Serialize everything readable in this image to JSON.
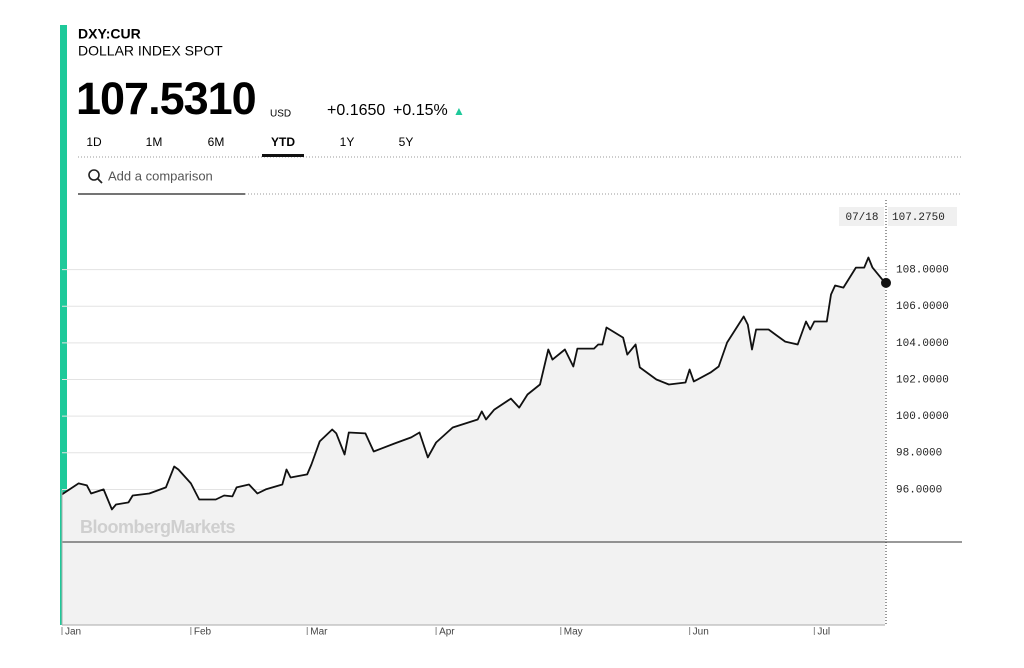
{
  "header": {
    "ticker": "DXY:CUR",
    "name": "DOLLAR INDEX SPOT",
    "price": "107.5310",
    "currency": "USD",
    "change": "+0.1650",
    "change_pct": "+0.15%",
    "arrow": "▲",
    "accent_color": "#1ec99a"
  },
  "tabs": {
    "items": [
      "1D",
      "1M",
      "6M",
      "YTD",
      "1Y",
      "5Y"
    ],
    "selected": "YTD"
  },
  "search_placeholder": "Add a comparison",
  "watermark": "BloombergMarkets",
  "chart_data": {
    "type": "line",
    "color": "#111111",
    "fill_color": "#f2f2f2",
    "grid": true,
    "x": [
      "01/01",
      "01/05",
      "01/07",
      "01/08",
      "01/11",
      "01/13",
      "01/14",
      "01/17",
      "01/18",
      "01/22",
      "01/26",
      "01/28",
      "01/29",
      "02/01",
      "02/03",
      "02/07",
      "02/09",
      "02/11",
      "02/12",
      "02/15",
      "02/17",
      "02/19",
      "02/23",
      "02/24",
      "02/25",
      "03/01",
      "03/02",
      "03/04",
      "03/07",
      "03/08",
      "03/10",
      "03/11",
      "03/15",
      "03/17",
      "03/22",
      "03/26",
      "03/28",
      "03/30",
      "04/01",
      "04/05",
      "04/11",
      "04/12",
      "04/13",
      "04/15",
      "04/19",
      "04/21",
      "04/23",
      "04/26",
      "04/28",
      "04/29",
      "05/02",
      "05/04",
      "05/05",
      "05/09",
      "05/10",
      "05/11",
      "05/12",
      "05/16",
      "05/17",
      "05/19",
      "05/20",
      "05/24",
      "05/27",
      "05/31",
      "06/01",
      "06/02",
      "06/06",
      "06/08",
      "06/10",
      "06/14",
      "06/15",
      "06/16",
      "06/17",
      "06/20",
      "06/22",
      "06/24",
      "06/27",
      "06/29",
      "06/30",
      "07/01",
      "07/04",
      "07/05",
      "07/06",
      "07/08",
      "07/11",
      "07/13",
      "07/14",
      "07/15",
      "07/18"
    ],
    "values": [
      95.73,
      96.33,
      96.22,
      95.78,
      96.0,
      94.91,
      95.18,
      95.29,
      95.67,
      95.78,
      96.11,
      97.25,
      97.09,
      96.33,
      95.45,
      95.45,
      95.67,
      95.62,
      96.11,
      96.27,
      95.78,
      96.0,
      96.27,
      97.09,
      96.65,
      96.82,
      97.36,
      98.62,
      99.27,
      99.06,
      97.91,
      99.11,
      99.06,
      98.07,
      98.51,
      98.84,
      99.11,
      97.75,
      98.56,
      99.38,
      99.82,
      100.26,
      99.82,
      100.36,
      100.96,
      100.47,
      101.18,
      101.73,
      103.64,
      103.09,
      103.64,
      102.71,
      103.69,
      103.69,
      103.91,
      103.91,
      104.84,
      104.29,
      103.36,
      103.91,
      102.66,
      102.0,
      101.73,
      101.84,
      102.55,
      101.89,
      102.38,
      102.71,
      104.02,
      105.44,
      105.0,
      103.64,
      104.73,
      104.73,
      104.4,
      104.07,
      103.91,
      105.17,
      104.73,
      105.17,
      105.17,
      106.64,
      107.13,
      107.02,
      108.11,
      108.11,
      108.66,
      108.11,
      107.28
    ],
    "xlim": [
      "01/01",
      "07/18"
    ],
    "xticks": [
      {
        "value": "01/01",
        "label": "Jan"
      },
      {
        "value": "02/01",
        "label": "Feb"
      },
      {
        "value": "03/01",
        "label": "Mar"
      },
      {
        "value": "04/01",
        "label": "Apr"
      },
      {
        "value": "05/01",
        "label": "May"
      },
      {
        "value": "06/01",
        "label": "Jun"
      },
      {
        "value": "07/01",
        "label": "Jul"
      }
    ],
    "ylim": [
      88.6,
      111.8
    ],
    "yticks": [
      {
        "value": 96,
        "label": "96.0000"
      },
      {
        "value": 98,
        "label": "98.0000"
      },
      {
        "value": 100,
        "label": "100.0000"
      },
      {
        "value": 102,
        "label": "102.0000"
      },
      {
        "value": 104,
        "label": "104.0000"
      },
      {
        "value": 106,
        "label": "106.0000"
      },
      {
        "value": 108,
        "label": "108.0000"
      }
    ],
    "crosshair": {
      "x": "07/18",
      "value": 107.275,
      "label": "107.2750"
    }
  }
}
